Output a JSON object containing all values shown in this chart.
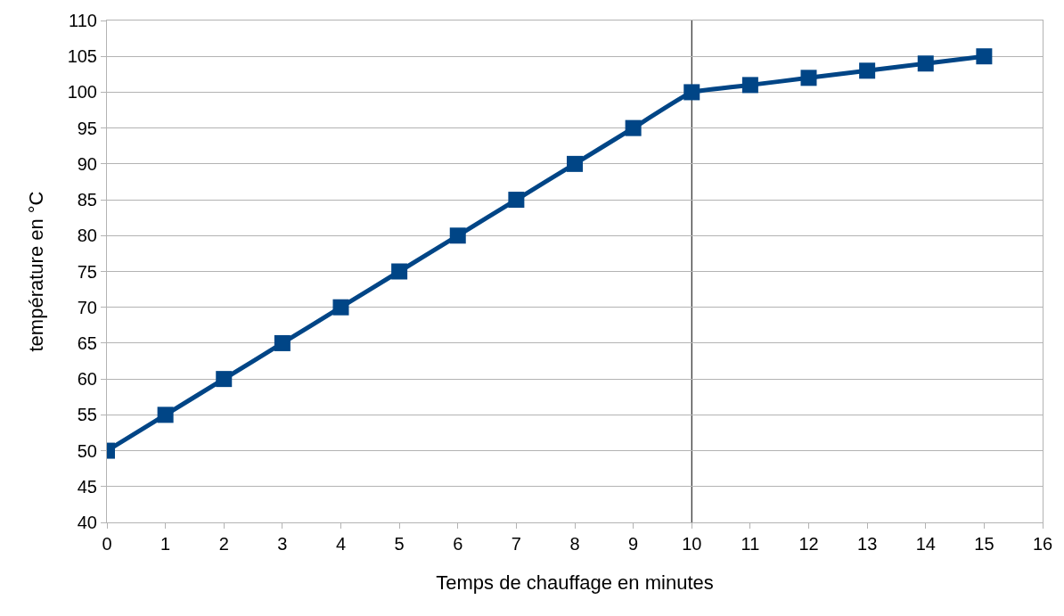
{
  "chart_data": {
    "type": "line",
    "xlabel": "Temps de chauffage en minutes",
    "ylabel": "température en °C",
    "x": [
      0,
      1,
      2,
      3,
      4,
      5,
      6,
      7,
      8,
      9,
      10,
      11,
      12,
      13,
      14,
      15
    ],
    "series": [
      {
        "color": "#004586",
        "values": [
          50,
          55,
          60,
          65,
          70,
          75,
          80,
          85,
          90,
          95,
          100,
          101,
          102,
          103,
          104,
          105
        ]
      }
    ],
    "xlim": [
      0,
      16
    ],
    "xticks": [
      0,
      1,
      2,
      3,
      4,
      5,
      6,
      7,
      8,
      9,
      10,
      11,
      12,
      13,
      14,
      15,
      16
    ],
    "ylim": [
      40,
      110
    ],
    "yticks": [
      40,
      45,
      50,
      55,
      60,
      65,
      70,
      75,
      80,
      85,
      90,
      95,
      100,
      105,
      110
    ],
    "ref_lines": [
      {
        "axis": "x",
        "value": 10,
        "color": "#000000"
      }
    ],
    "grid": "y",
    "marker": "square",
    "line_style": "solid"
  }
}
